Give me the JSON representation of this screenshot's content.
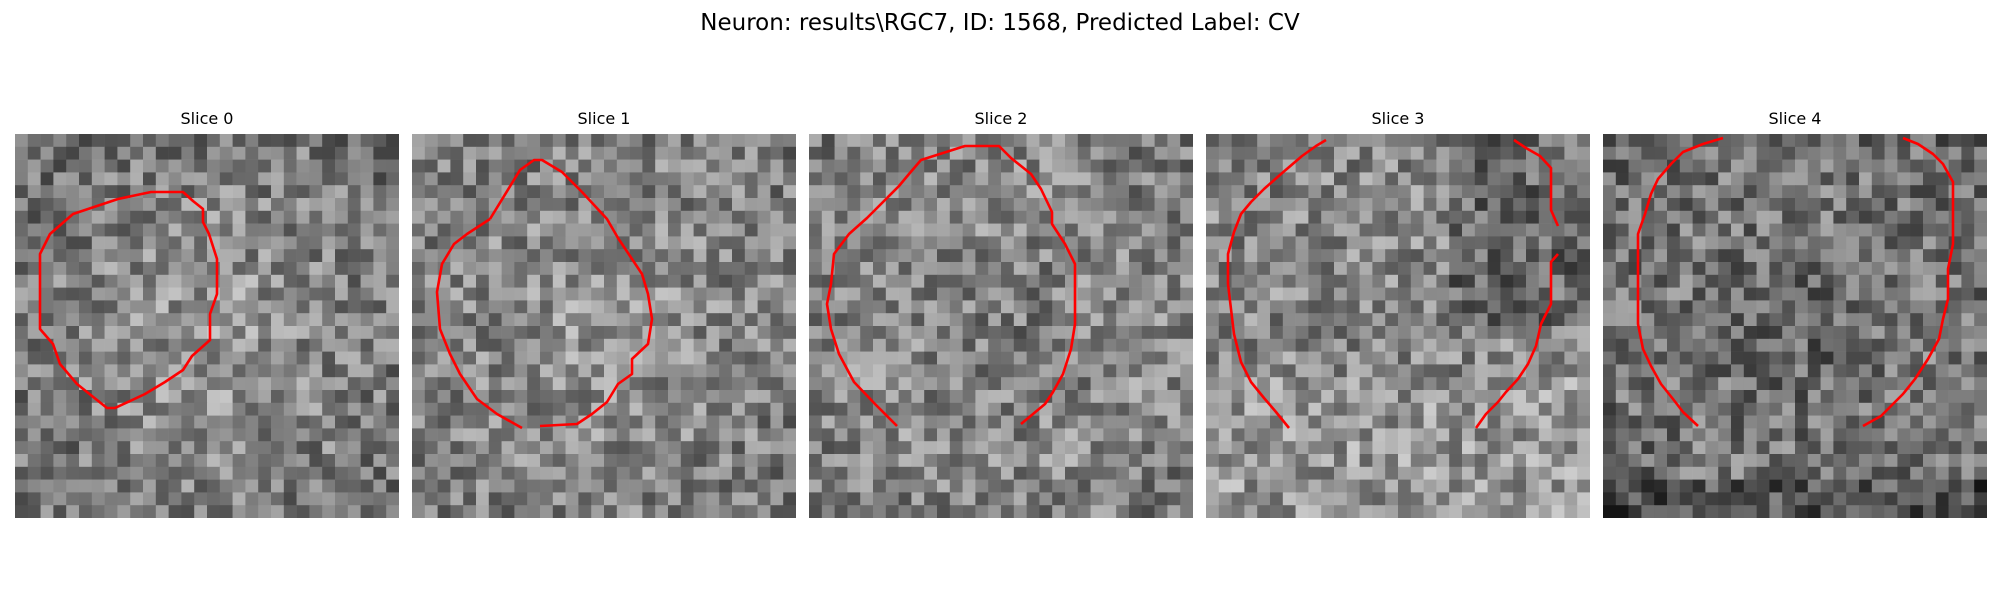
{
  "figure": {
    "title": "Neuron: results\\RGC7, ID: 1568, Predicted Label: CV"
  },
  "panels": [
    {
      "title": "Slice 0",
      "image": "grayscale-noise-slice-with-red-contour"
    },
    {
      "title": "Slice 1",
      "image": "grayscale-noise-slice-with-red-contour"
    },
    {
      "title": "Slice 2",
      "image": "grayscale-noise-slice-with-red-contour"
    },
    {
      "title": "Slice 3",
      "image": "grayscale-noise-slice-with-red-contour"
    },
    {
      "title": "Slice 4",
      "image": "grayscale-noise-slice-with-red-contour"
    }
  ],
  "colors": {
    "contour": "#ff0000",
    "background": "#ffffff"
  }
}
